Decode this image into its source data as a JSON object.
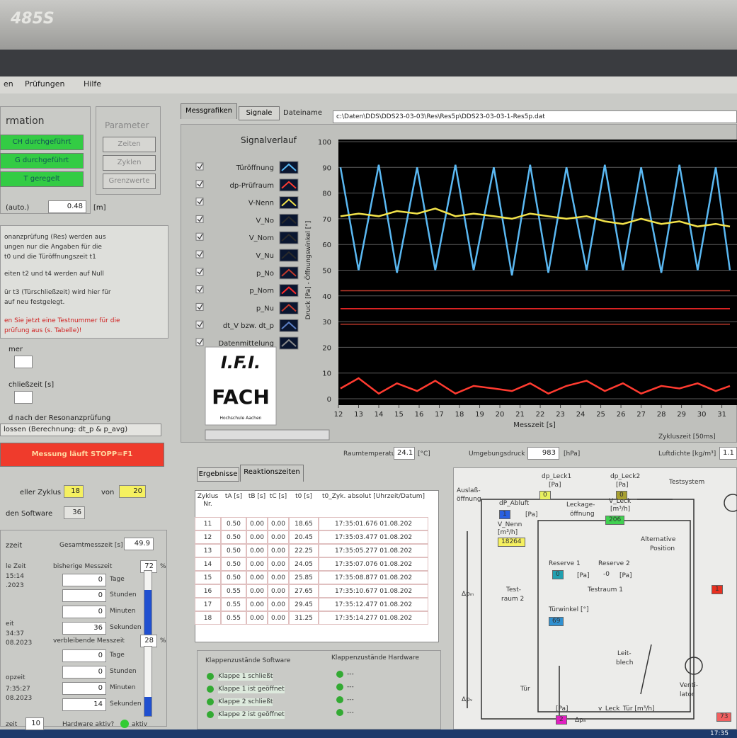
{
  "bezel": {
    "model": "485S"
  },
  "menu": [
    "en",
    "Prüfungen",
    "Hilfe"
  ],
  "left_panel": {
    "group_title": "rmation",
    "status_buttons": [
      "CH durchgeführt",
      "G durchgeführt",
      "T geregelt"
    ],
    "parameter_title": "Parameter",
    "parameter_buttons": [
      "Zeiten",
      "Zyklen",
      "Grenzwerte"
    ],
    "auto_label": "(auto.)",
    "auto_value": "0.48",
    "auto_unit": "[m]",
    "info_lines": [
      "onanzprüfung (Res) werden aus",
      "ungen nur die Angaben für die",
      "t0 und die Türöffnungszeit t1",
      "eiten t2 und t4 werden auf Null",
      "ür t3 (Türschließzeit) wird hier für",
      "auf neu festgelegt."
    ],
    "warning_lines": [
      "en Sie jetzt eine Testnummer für die",
      "prüfung aus (s. Tabelle)!"
    ],
    "field_labels": [
      "mer",
      "chließzeit [s]",
      "d nach der Resonanzprüfung"
    ],
    "mode_value": "lossen (Berechnung: dt_p & p_avg)",
    "run_button": "Messung läuft  STOPP=F1",
    "cycle_label": "eller Zyklus",
    "cycle_value": "18",
    "cycle_of": "von",
    "cycle_total": "20",
    "software_label": "den Software",
    "software_value": "36",
    "time_title": "zzeit",
    "total_label": "Gesamtmesszeit [s]",
    "total_value": "49.9",
    "elapsed": {
      "label": "bisherige Messzeit",
      "percent": 72,
      "unit": "%",
      "fields": [
        "0",
        "0",
        "0",
        "36"
      ],
      "units": [
        "Tage",
        "Stunden",
        "Minuten",
        "Sekunden"
      ]
    },
    "remaining": {
      "label": "verbleibende Messzeit",
      "percent": 28,
      "unit": "%",
      "fields": [
        "0",
        "0",
        "0",
        "14"
      ],
      "units": [
        "Tage",
        "Stunden",
        "Minuten",
        "Sekunden"
      ]
    },
    "time_labels": [
      "le Zeit",
      "15:14",
      ".2023",
      "eit",
      "34:37",
      "08.2023",
      "opzeit",
      "7:35:27",
      "08.2023"
    ],
    "footer_label": "zeit",
    "footer_value": "10",
    "hardware_label": "Hardware aktiv?",
    "hardware_state": "aktiv"
  },
  "top_tabs": [
    "Messgrafiken",
    "Signale"
  ],
  "file_label": "Dateiname",
  "file_path": "c:\\Daten\\DDS\\DDS23-03-03\\Res\\Res5p\\DDS23-03-03-1-Res5p.dat",
  "chart_data": {
    "type": "line",
    "title": "Signalverlauf",
    "y_label": "Druck [Pa] - Öffnungswinkel [°]",
    "x_label": "Messzeit [s]",
    "x": [
      12.1,
      13.0,
      14.0,
      14.9,
      15.9,
      16.8,
      17.8,
      18.7,
      19.7,
      20.6,
      21.5,
      22.4,
      23.3,
      24.3,
      25.2,
      26.1,
      27.0,
      28.0,
      28.9,
      29.8,
      30.7,
      31.4
    ],
    "xlim": [
      12,
      31.4
    ],
    "xticks": [
      12,
      13,
      14,
      15,
      16,
      17,
      18,
      19,
      20,
      21,
      22,
      23,
      24,
      25,
      26,
      27,
      28,
      29,
      30,
      31
    ],
    "ylim": [
      0,
      100
    ],
    "yticks": [
      0,
      10,
      20,
      30,
      40,
      50,
      60,
      70,
      80,
      90,
      100
    ],
    "grid": true,
    "series": [
      {
        "name": "Türöffnung",
        "color": "#5ab8f2",
        "values": [
          90,
          50,
          91,
          49,
          90,
          50,
          91,
          50,
          90,
          48,
          91,
          49,
          90,
          50,
          91,
          50,
          90,
          49,
          91,
          50,
          90,
          50
        ]
      },
      {
        "name": "dp-Prüfraum",
        "color": "#ff3b30",
        "values": [
          4,
          8,
          2,
          6,
          3,
          7,
          2,
          5,
          4,
          3,
          6,
          2,
          5,
          7,
          3,
          6,
          2,
          5,
          4,
          6,
          3,
          5
        ]
      },
      {
        "name": "V-Nenn",
        "color": "#f2e24a",
        "values": [
          71,
          72,
          71,
          73,
          72,
          74,
          71,
          72,
          71,
          70,
          72,
          71,
          70,
          71,
          69,
          68,
          70,
          68,
          69,
          67,
          68,
          67
        ]
      },
      {
        "name": "V_No",
        "color": "#2a2a2a",
        "values": [
          null,
          null,
          null,
          null,
          null,
          null,
          null,
          null,
          null,
          null,
          null,
          null,
          null,
          null,
          null,
          null,
          null,
          null,
          null,
          null,
          null,
          null
        ]
      },
      {
        "name": "V_Nom",
        "color": "#2a2a2a",
        "values": [
          null,
          null,
          null,
          null,
          null,
          null,
          null,
          null,
          null,
          null,
          null,
          null,
          null,
          null,
          null,
          null,
          null,
          null,
          null,
          null,
          null,
          null
        ]
      },
      {
        "name": "V_Nu",
        "color": "#2a2a2a",
        "values": [
          null,
          null,
          null,
          null,
          null,
          null,
          null,
          null,
          null,
          null,
          null,
          null,
          null,
          null,
          null,
          null,
          null,
          null,
          null,
          null,
          null,
          null
        ]
      },
      {
        "name": "p_No",
        "color": "#c0392b",
        "values": [
          42,
          42,
          42,
          42,
          42,
          42,
          42,
          42,
          42,
          42,
          42,
          42,
          42,
          42,
          42,
          42,
          42,
          42,
          42,
          42,
          42,
          42
        ]
      },
      {
        "name": "p_Nom",
        "color": "#ff2a2a",
        "values": [
          35,
          35,
          35,
          35,
          35,
          35,
          35,
          35,
          35,
          35,
          35,
          35,
          35,
          35,
          35,
          35,
          35,
          35,
          35,
          35,
          35,
          35
        ]
      },
      {
        "name": "p_Nu",
        "color": "#c0392b",
        "values": [
          29,
          29,
          29,
          29,
          29,
          29,
          29,
          29,
          29,
          29,
          29,
          29,
          29,
          29,
          29,
          29,
          29,
          29,
          29,
          29,
          29,
          29
        ]
      },
      {
        "name": "dt_V bzw. dt_p",
        "color": "#5b7fc4",
        "values": [
          null,
          null,
          null,
          null,
          null,
          null,
          null,
          null,
          null,
          null,
          null,
          null,
          null,
          null,
          null,
          null,
          null,
          null,
          null,
          null,
          null,
          null
        ]
      },
      {
        "name": "Datenmittelung",
        "color": "#8a8a8a",
        "values": [
          null,
          null,
          null,
          null,
          null,
          null,
          null,
          null,
          null,
          null,
          null,
          null,
          null,
          null,
          null,
          null,
          null,
          null,
          null,
          null,
          null,
          null
        ]
      }
    ]
  },
  "logo": {
    "mark": "I.F.I.",
    "name": "FACH",
    "caption": "Hochschule Aachen"
  },
  "cycle_time_label": "Zykluszeit [50ms]",
  "status": {
    "room_temp_label": "Raumtemperatur",
    "room_temp": "24.1",
    "room_temp_unit": "[°C]",
    "pressure_label": "Umgebungsdruck",
    "pressure": "983",
    "pressure_unit": "[hPa]",
    "density_label": "Luftdichte [kg/m³]",
    "density": "1.1"
  },
  "result_tabs": [
    "Ergebnisse",
    "Reaktionszeiten"
  ],
  "table": {
    "header": [
      "Zyklus Nr.",
      "tA [s]",
      "tB [s]",
      "tC [s]",
      "t0 [s]",
      "t0_Zyk. absolut [Uhrzeit/Datum]"
    ],
    "rows": [
      [
        "11",
        "0.50",
        "0.00",
        "0.00",
        "18.65",
        "17:35:01.676 01.08.202"
      ],
      [
        "12",
        "0.50",
        "0.00",
        "0.00",
        "20.45",
        "17:35:03.477 01.08.202"
      ],
      [
        "13",
        "0.50",
        "0.00",
        "0.00",
        "22.25",
        "17:35:05.277 01.08.202"
      ],
      [
        "14",
        "0.50",
        "0.00",
        "0.00",
        "24.05",
        "17:35:07.076 01.08.202"
      ],
      [
        "15",
        "0.50",
        "0.00",
        "0.00",
        "25.85",
        "17:35:08.877 01.08.202"
      ],
      [
        "16",
        "0.55",
        "0.00",
        "0.00",
        "27.65",
        "17:35:10.677 01.08.202"
      ],
      [
        "17",
        "0.55",
        "0.00",
        "0.00",
        "29.45",
        "17:35:12.477 01.08.202"
      ],
      [
        "18",
        "0.55",
        "0.00",
        "0.00",
        "31.25",
        "17:35:14.277 01.08.202"
      ]
    ]
  },
  "valves": {
    "software_title": "Klappenzustände Software",
    "software": [
      "Klappe 1 schließt",
      "Klappe 1 ist geöffnet",
      "Klappe 2 schließt",
      "Klappe 2 ist geöffnet"
    ],
    "hardware_title": "Klappenzustände Hardware",
    "hardware": [
      "---",
      "---",
      "---",
      "---"
    ]
  },
  "diagram": {
    "labels": [
      "dp_Leck1",
      "[Pa]",
      "0",
      "dp_Leck2",
      "[Pa]",
      "0",
      "Testsystem",
      "Auslaß-",
      "öffnung",
      "dP_Abluft",
      "1",
      "[Pa]",
      "V_Nenn",
      "[m³/h]",
      "18264",
      "Leckage-",
      "öffnung",
      "V_Leck",
      "[m³/h]",
      "206",
      "Alternative",
      "Position",
      "Reserve 1",
      "0",
      "[Pa]",
      "Reserve 2",
      "-0",
      "[Pa]",
      "Testraum 1",
      "Test-",
      "raum 2",
      "Türwinkel [°]",
      "69",
      "Leit-",
      "blech",
      "Tür",
      "[Pa]",
      "2",
      "Δpₐ",
      "v_Leck_Tür [m³/h]",
      "Venti-",
      "lator",
      "73",
      "Δpₘ",
      "Δpᵥ",
      "1"
    ]
  },
  "clock": "17:35"
}
